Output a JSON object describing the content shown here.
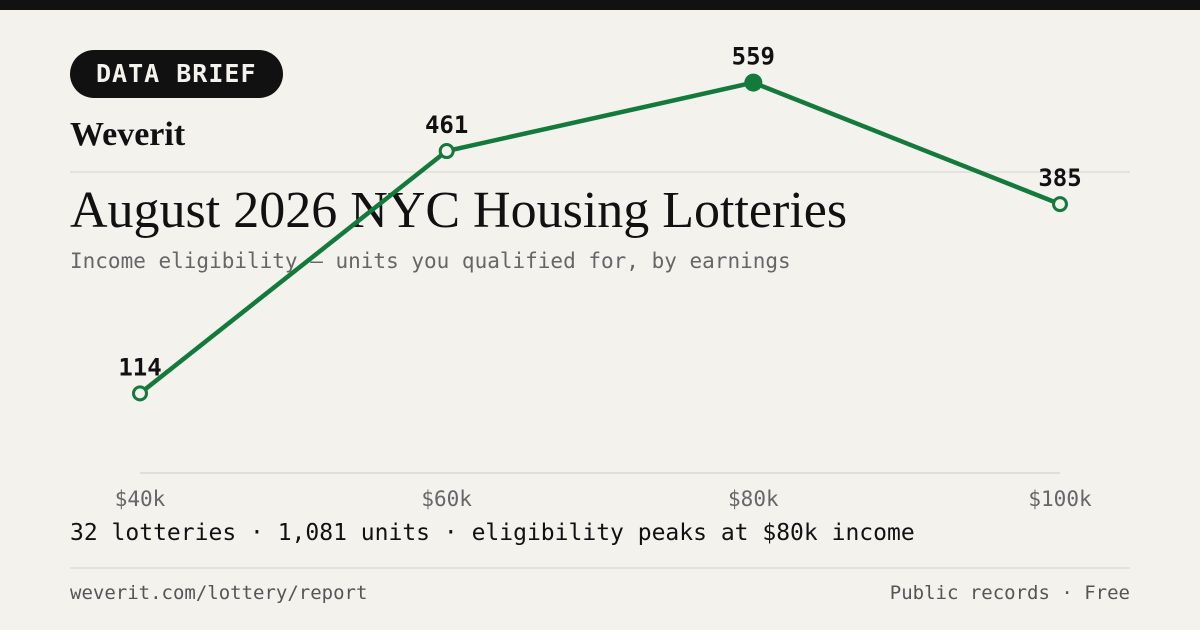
{
  "badge": "DATA BRIEF",
  "brand": "Weverit",
  "title": "August 2026 NYC Housing Lotteries",
  "subtitle": "Income eligibility — units you qualified for, by earnings",
  "summary": "32 lotteries · 1,081 units · eligibility peaks at $80k income",
  "footer": {
    "url": "weverit.com/lottery/report",
    "meta": "Public records · Free"
  },
  "colors": {
    "line": "#137a3c",
    "text": "#111111",
    "muted": "#666666",
    "background": "#f3f2ed"
  },
  "chart_data": {
    "type": "line",
    "categories": [
      "$40k",
      "$60k",
      "$80k",
      "$100k"
    ],
    "values": [
      114,
      461,
      559,
      385
    ],
    "highlight_index": 2,
    "xlabel": "",
    "ylabel": "",
    "ylim": [
      0,
      620
    ],
    "grid": false,
    "data_labels": true
  }
}
